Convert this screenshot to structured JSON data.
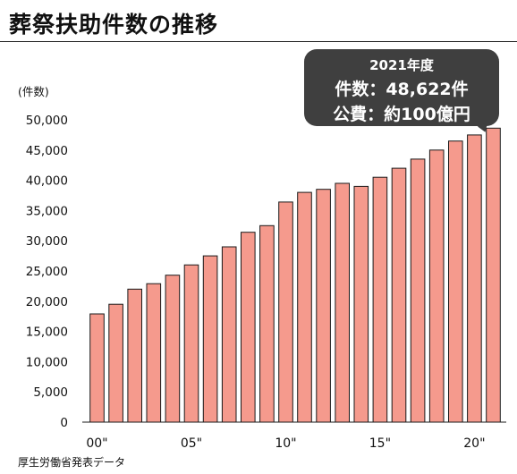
{
  "title": "葬祭扶助件数の推移",
  "unit_label": "(件数)",
  "source": "厚生労働省発表データ",
  "callout": {
    "line1": "2021年度",
    "line2": "件数：48,622件",
    "line3": "公費：約100億円"
  },
  "colors": {
    "bar_fill": "#f59a8d",
    "bar_stroke": "#1a1a1a",
    "callout_bg": "#3f3f3f"
  },
  "chart_data": {
    "type": "bar",
    "categories": [
      "2000",
      "2001",
      "2002",
      "2003",
      "2004",
      "2005",
      "2006",
      "2007",
      "2008",
      "2009",
      "2010",
      "2011",
      "2012",
      "2013",
      "2014",
      "2015",
      "2016",
      "2017",
      "2018",
      "2019",
      "2020",
      "2021"
    ],
    "values": [
      17900,
      19500,
      22000,
      22900,
      24300,
      26000,
      27500,
      29000,
      31400,
      32500,
      36400,
      38000,
      38500,
      39500,
      39000,
      40500,
      42000,
      43500,
      45000,
      46500,
      47500,
      48622
    ],
    "x_tick_labels": [
      {
        "label": "00\"",
        "index": 0
      },
      {
        "label": "05\"",
        "index": 5
      },
      {
        "label": "10\"",
        "index": 10
      },
      {
        "label": "15\"",
        "index": 15
      },
      {
        "label": "20\"",
        "index": 20
      }
    ],
    "y_ticks": [
      0,
      5000,
      10000,
      15000,
      20000,
      25000,
      30000,
      35000,
      40000,
      45000,
      50000
    ],
    "y_tick_labels": [
      "0",
      "5,000",
      "10,000",
      "15,000",
      "20,000",
      "25,000",
      "30,000",
      "35,000",
      "40,000",
      "45,000",
      "50,000"
    ],
    "ylim": [
      0,
      50000
    ],
    "grid": false
  }
}
